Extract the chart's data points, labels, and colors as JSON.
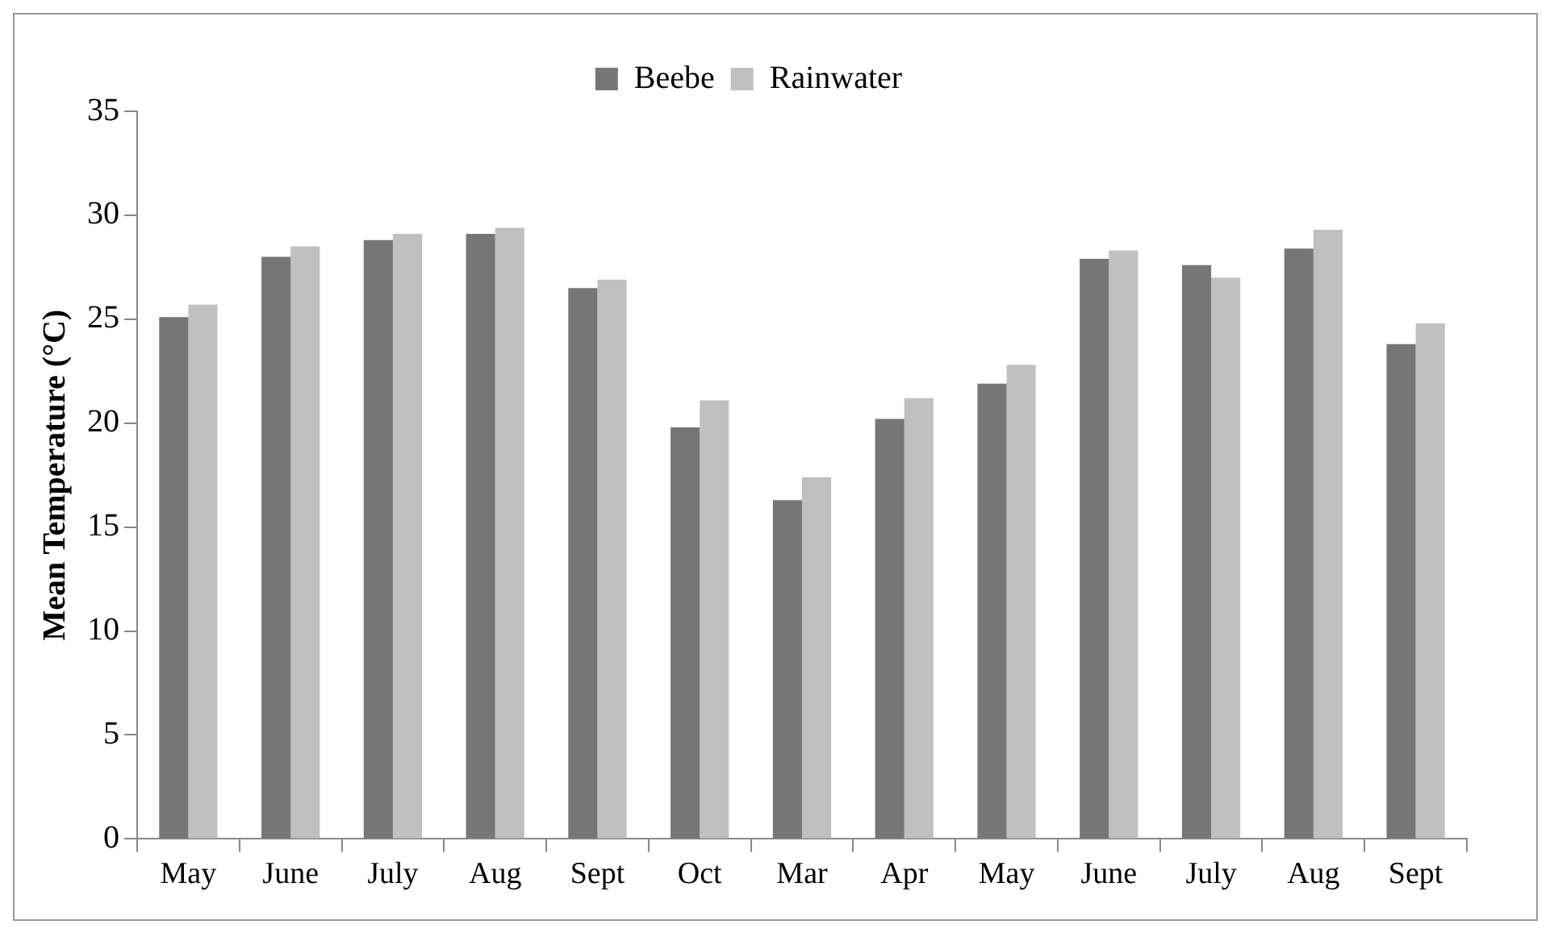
{
  "chart_data": {
    "type": "bar",
    "ylabel": "Mean Temperature (°C)",
    "categories": [
      "May",
      "June",
      "July",
      "Aug",
      "Sept",
      "Oct",
      "Mar",
      "Apr",
      "May",
      "June",
      "July",
      "Aug",
      "Sept"
    ],
    "series": [
      {
        "name": "Beebe",
        "color": "#767676",
        "values": [
          25.1,
          28.0,
          28.8,
          29.1,
          26.5,
          19.8,
          16.3,
          20.2,
          21.9,
          27.9,
          27.6,
          28.4,
          23.8
        ]
      },
      {
        "name": "Rainwater",
        "color": "#c0c0c0",
        "values": [
          25.7,
          28.5,
          29.1,
          29.4,
          26.9,
          21.1,
          17.4,
          21.2,
          22.8,
          28.3,
          27.0,
          29.3,
          24.8
        ]
      }
    ],
    "ylim": [
      0,
      35
    ],
    "yticks": [
      0,
      5,
      10,
      15,
      20,
      25,
      30,
      35
    ],
    "grid": false,
    "legend": "top"
  }
}
